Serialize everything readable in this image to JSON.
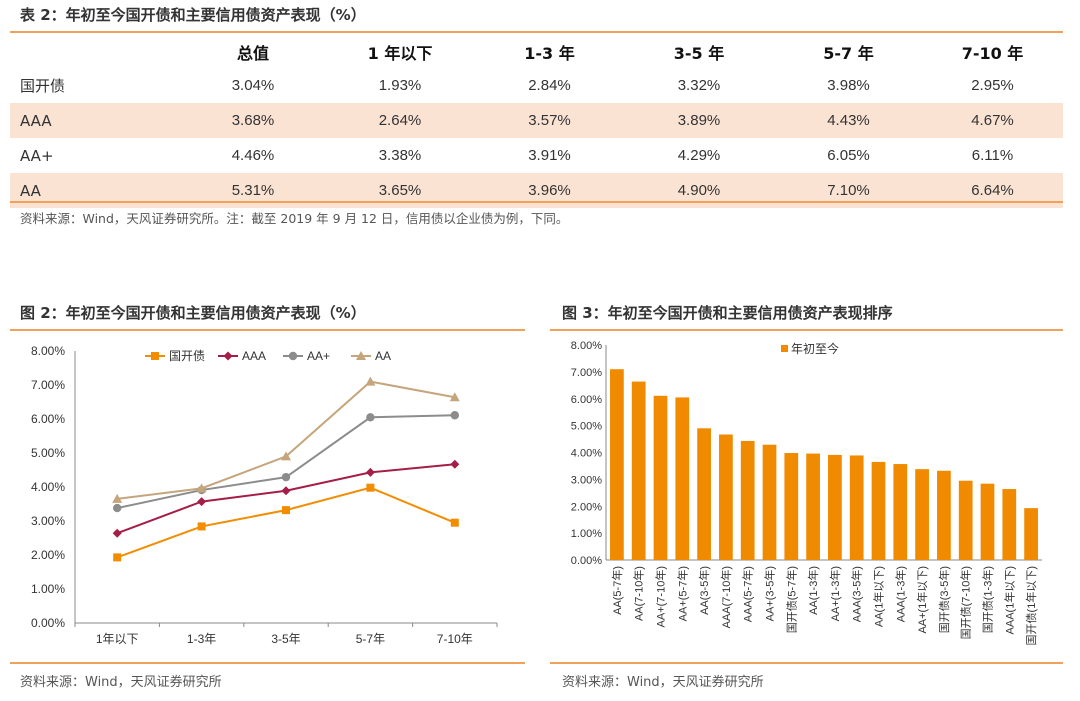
{
  "table": {
    "title": "表 2：年初至今国开债和主要信用债资产表现（%）",
    "headers": [
      "",
      "总值",
      "1 年以下",
      "1-3 年",
      "3-5 年",
      "5-7 年",
      "7-10 年"
    ],
    "rows": [
      {
        "name": "国开债",
        "values": [
          "3.04%",
          "1.93%",
          "2.84%",
          "3.32%",
          "3.98%",
          "2.95%"
        ]
      },
      {
        "name": "AAA",
        "values": [
          "3.68%",
          "2.64%",
          "3.57%",
          "3.89%",
          "4.43%",
          "4.67%"
        ]
      },
      {
        "name": "AA+",
        "values": [
          "4.46%",
          "3.38%",
          "3.91%",
          "4.29%",
          "6.05%",
          "6.11%"
        ]
      },
      {
        "name": "AA",
        "values": [
          "5.31%",
          "3.65%",
          "3.96%",
          "4.90%",
          "7.10%",
          "6.64%"
        ]
      }
    ],
    "source": "资料来源：Wind，天风证券研究所。注：截至 2019 年 9 月 12 日，信用债以企业债为例，下同。"
  },
  "chart2_title": "图 2：年初至今国开债和主要信用债资产表现（%）",
  "chart3_title": "图 3：年初至今国开债和主要信用债资产表现排序",
  "source_left": "资料来源：Wind，天风证券研究所",
  "source_right": "资料来源：Wind，天风证券研究所",
  "chart_data": [
    {
      "type": "line",
      "categories": [
        "1年以下",
        "1-3年",
        "3-5年",
        "5-7年",
        "7-10年"
      ],
      "series": [
        {
          "name": "国开债",
          "color": "#f28c00",
          "marker": "square",
          "values": [
            1.93,
            2.84,
            3.32,
            3.98,
            2.95
          ]
        },
        {
          "name": "AAA",
          "color": "#a51e48",
          "marker": "diamond",
          "values": [
            2.64,
            3.57,
            3.89,
            4.43,
            4.67
          ]
        },
        {
          "name": "AA+",
          "color": "#8c8c8c",
          "marker": "circle",
          "values": [
            3.38,
            3.91,
            4.29,
            6.05,
            6.11
          ]
        },
        {
          "name": "AA",
          "color": "#c4a57c",
          "marker": "triangle",
          "values": [
            3.65,
            3.96,
            4.9,
            7.1,
            6.64
          ]
        }
      ],
      "ylim": [
        0,
        8
      ],
      "yticks": [
        "0.00%",
        "1.00%",
        "2.00%",
        "3.00%",
        "4.00%",
        "5.00%",
        "6.00%",
        "7.00%",
        "8.00%"
      ],
      "legend": "top"
    },
    {
      "type": "bar",
      "categories": [
        "AA(5-7年)",
        "AA(7-10年)",
        "AA+(7-10年)",
        "AA+(5-7年)",
        "AA(3-5年)",
        "AAA(7-10年)",
        "AAA(5-7年)",
        "AA+(3-5年)",
        "国开债(5-7年)",
        "AA(1-3年)",
        "AA+(1-3年)",
        "AAA(3-5年)",
        "AA(1年以下)",
        "AAA(1-3年)",
        "AA+(1年以下)",
        "国开债(3-5年)",
        "国开债(7-10年)",
        "国开债(1-3年)",
        "AAA(1年以下)",
        "国开债(1年以下)"
      ],
      "series": [
        {
          "name": "年初至今",
          "color": "#f08a00",
          "values": [
            7.1,
            6.64,
            6.11,
            6.05,
            4.9,
            4.67,
            4.43,
            4.29,
            3.98,
            3.96,
            3.91,
            3.89,
            3.65,
            3.57,
            3.38,
            3.32,
            2.95,
            2.84,
            2.64,
            1.93
          ]
        }
      ],
      "ylim": [
        0,
        8
      ],
      "yticks": [
        "0.00%",
        "1.00%",
        "2.00%",
        "3.00%",
        "4.00%",
        "5.00%",
        "6.00%",
        "7.00%",
        "8.00%"
      ],
      "legend": "top"
    }
  ]
}
